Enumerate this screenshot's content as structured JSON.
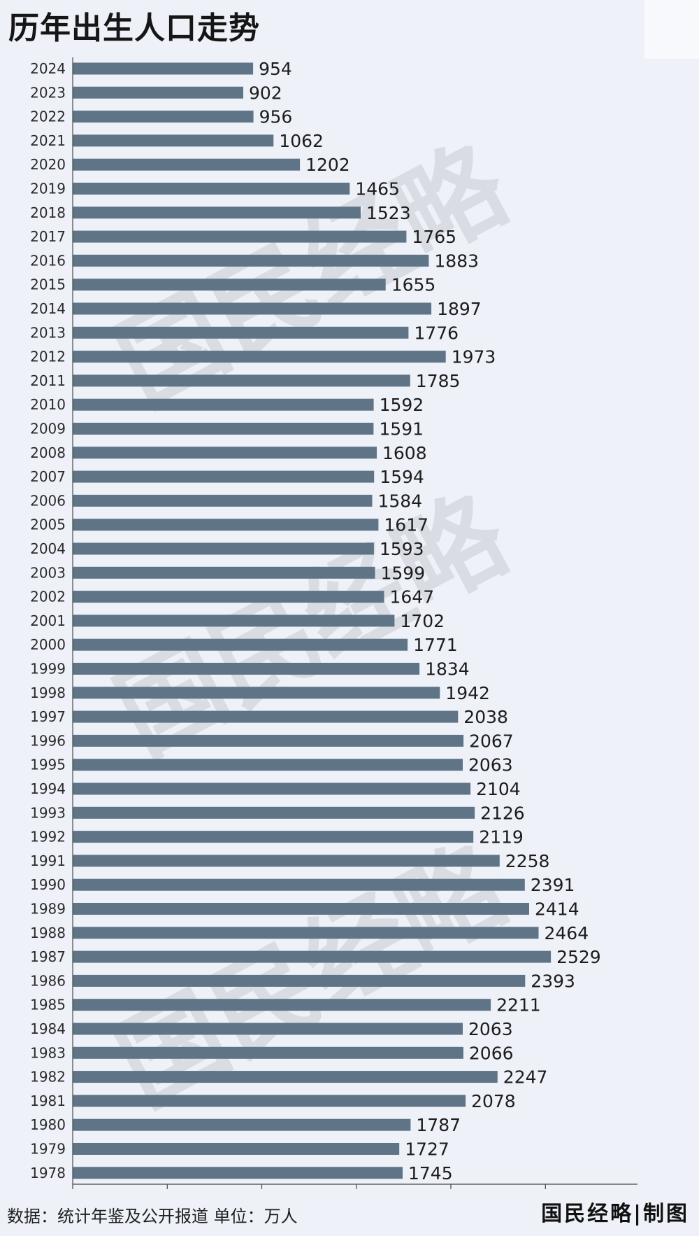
{
  "header": {
    "title": "历年出生人口走势"
  },
  "footer": {
    "source": "数据：统计年鉴及公开报道 单位：万人",
    "brand": "国民经略|制图"
  },
  "watermark": {
    "text": "国民经略"
  },
  "colors": {
    "background": "#eef1f7",
    "bar": "#5f7486",
    "axis": "#4a4a4a",
    "watermark": "#c8ccd2"
  },
  "chart_data": {
    "type": "bar",
    "orientation": "horizontal",
    "categories": [
      "2024",
      "2023",
      "2022",
      "2021",
      "2020",
      "2019",
      "2018",
      "2017",
      "2016",
      "2015",
      "2014",
      "2013",
      "2012",
      "2011",
      "2010",
      "2009",
      "2008",
      "2007",
      "2006",
      "2005",
      "2004",
      "2003",
      "2002",
      "2001",
      "2000",
      "1999",
      "1998",
      "1997",
      "1996",
      "1995",
      "1994",
      "1993",
      "1992",
      "1991",
      "1990",
      "1989",
      "1988",
      "1987",
      "1986",
      "1985",
      "1984",
      "1983",
      "1982",
      "1981",
      "1980",
      "1979",
      "1978"
    ],
    "values": [
      954,
      902,
      956,
      1062,
      1202,
      1465,
      1523,
      1765,
      1883,
      1655,
      1897,
      1776,
      1973,
      1785,
      1592,
      1591,
      1608,
      1594,
      1584,
      1617,
      1593,
      1599,
      1647,
      1702,
      1771,
      1834,
      1942,
      2038,
      2067,
      2063,
      2104,
      2126,
      2119,
      2258,
      2391,
      2414,
      2464,
      2529,
      2393,
      2211,
      2063,
      2066,
      2247,
      2078,
      1787,
      1727,
      1745
    ],
    "xlim": [
      0,
      2650
    ],
    "x_tick_values": [
      0,
      500,
      1000,
      1500,
      2000,
      2500
    ],
    "grid": false,
    "legend": "none"
  }
}
